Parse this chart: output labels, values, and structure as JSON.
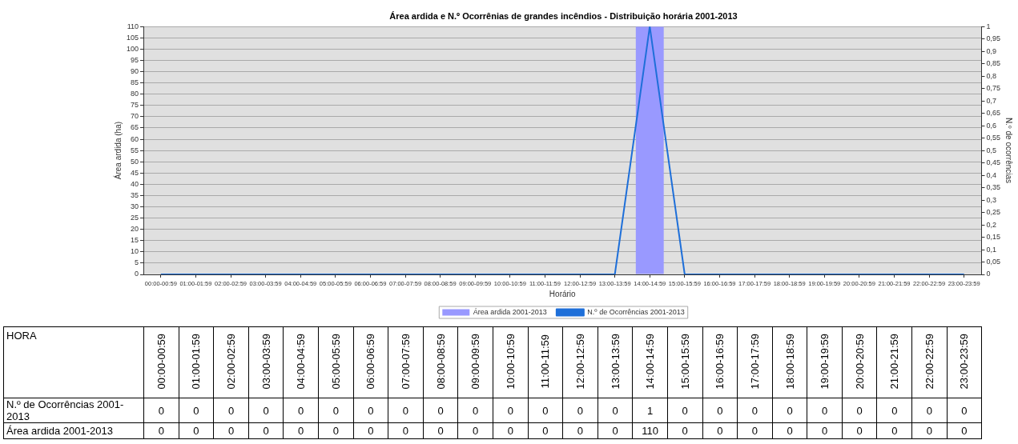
{
  "chart_data": {
    "type": "bar",
    "title": "Área ardida e N.º Ocorrênias de grandes incêndios - Distribuição horária 2001-2013",
    "xlabel": "Horário",
    "ylabel": "Área ardida (ha)",
    "y2label": "N.º de ocorrências",
    "categories": [
      "00:00-00:59",
      "01:00-01:59",
      "02:00-02:59",
      "03:00-03:59",
      "04:00-04:59",
      "05:00-05:59",
      "06:00-06:59",
      "07:00-07:59",
      "08:00-08:59",
      "09:00-09:59",
      "10:00-10:59",
      "11:00-11:59",
      "12:00-12:59",
      "13:00-13:59",
      "14:00-14:59",
      "15:00-15:59",
      "16:00-16:59",
      "17:00-17:59",
      "18:00-18:59",
      "19:00-19:59",
      "20:00-20:59",
      "21:00-21:59",
      "22:00-22:59",
      "23:00-23:59"
    ],
    "series": [
      {
        "name": "Área ardida 2001-2013",
        "color": "#9999ff",
        "values": [
          0,
          0,
          0,
          0,
          0,
          0,
          0,
          0,
          0,
          0,
          0,
          0,
          0,
          0,
          110,
          0,
          0,
          0,
          0,
          0,
          0,
          0,
          0,
          0
        ]
      },
      {
        "name": "N.º de Ocorrências 2001-2013",
        "type": "line",
        "axis": "y2",
        "color": "#1e6fd9",
        "values": [
          0,
          0,
          0,
          0,
          0,
          0,
          0,
          0,
          0,
          0,
          0,
          0,
          0,
          0,
          1,
          0,
          0,
          0,
          0,
          0,
          0,
          0,
          0,
          0
        ]
      }
    ],
    "ylim": [
      0,
      110
    ],
    "yticks": [
      0,
      5,
      10,
      15,
      20,
      25,
      30,
      35,
      40,
      45,
      50,
      55,
      60,
      65,
      70,
      75,
      80,
      85,
      90,
      95,
      100,
      105,
      110
    ],
    "y2lim": [
      0,
      1
    ],
    "y2ticks": [
      0,
      {
        "value": 0.05,
        "label": "0,05"
      },
      {
        "value": 0.1,
        "label": "0,1"
      },
      {
        "value": 0.15,
        "label": "0,15"
      },
      {
        "value": 0.2,
        "label": "0,2"
      },
      {
        "value": 0.25,
        "label": "0,25"
      },
      {
        "value": 0.3,
        "label": "0,3"
      },
      {
        "value": 0.35,
        "label": "0,35"
      },
      {
        "value": 0.4,
        "label": "0,4"
      },
      {
        "value": 0.45,
        "label": "0,45"
      },
      {
        "value": 0.5,
        "label": "0,5"
      },
      {
        "value": 0.55,
        "label": "0,55"
      },
      {
        "value": 0.6,
        "label": "0,6"
      },
      {
        "value": 0.65,
        "label": "0,65"
      },
      {
        "value": 0.7,
        "label": "0,7"
      },
      {
        "value": 0.75,
        "label": "0,75"
      },
      {
        "value": 0.8,
        "label": "0,8"
      },
      {
        "value": 0.85,
        "label": "0,85"
      },
      {
        "value": 0.9,
        "label": "0,9"
      },
      {
        "value": 0.95,
        "label": "0,95"
      },
      1
    ],
    "grid": "y",
    "legend": "bottom",
    "data_labels": true,
    "annotations": [
      "HORA"
    ]
  }
}
